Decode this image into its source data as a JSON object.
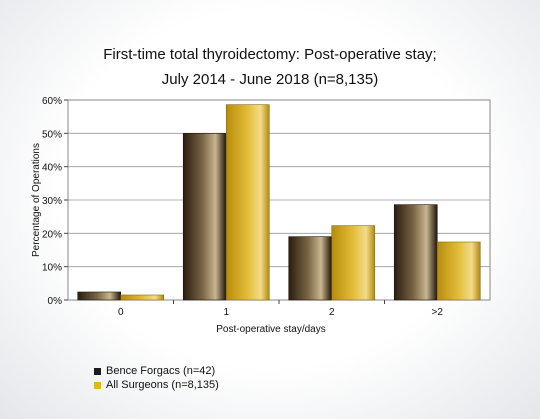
{
  "colors": {
    "series1": "#4a3a24",
    "series2": "#d8ae1e"
  },
  "chart_data": {
    "type": "bar",
    "title_lines": [
      "First-time total thyroidectomy: Post-operative stay;",
      "July 2014 - June 2018 (n=8,135)"
    ],
    "xlabel": "Post-operative stay/days",
    "ylabel": "Percentage of Operations",
    "ylim": [
      0,
      60
    ],
    "yticks": [
      "0%",
      "10%",
      "20%",
      "30%",
      "40%",
      "50%",
      "60%"
    ],
    "ytick_values": [
      0,
      10,
      20,
      30,
      40,
      50,
      60
    ],
    "grid": true,
    "legend_position": "bottom-left",
    "categories": [
      "0",
      "1",
      "2",
      ">2"
    ],
    "series": [
      {
        "name": "Bence Forgacs (n=42)",
        "values": [
          2.4,
          50.0,
          19.0,
          28.6
        ]
      },
      {
        "name": "All Surgeons (n=8,135)",
        "values": [
          1.5,
          58.6,
          22.3,
          17.4
        ]
      }
    ]
  }
}
